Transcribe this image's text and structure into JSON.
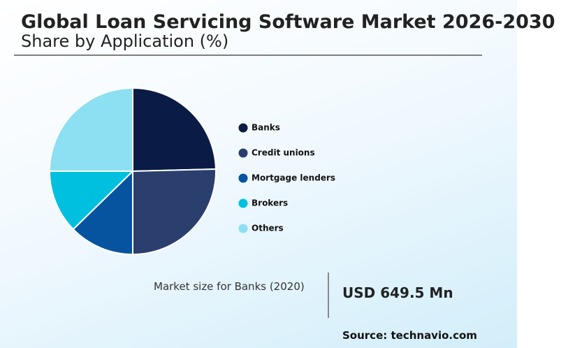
{
  "chart_data": {
    "type": "pie",
    "title": "Global Loan Servicing Software Market 2026-2030",
    "subtitle": "Share by Application (%)",
    "categories": [
      "Banks",
      "Credit unions",
      "Mortgage lenders",
      "Brokers",
      "Others"
    ],
    "values": [
      24.6,
      25.4,
      12.7,
      12.3,
      25
    ],
    "colors": [
      "#0a1c45",
      "#2b3f6e",
      "#0654a0",
      "#00c0e0",
      "#8ddff2"
    ],
    "annotation": {
      "label": "Market size for Banks (2020)",
      "value": "USD 649.5 Mn"
    },
    "source": "Source: technavio.com"
  }
}
